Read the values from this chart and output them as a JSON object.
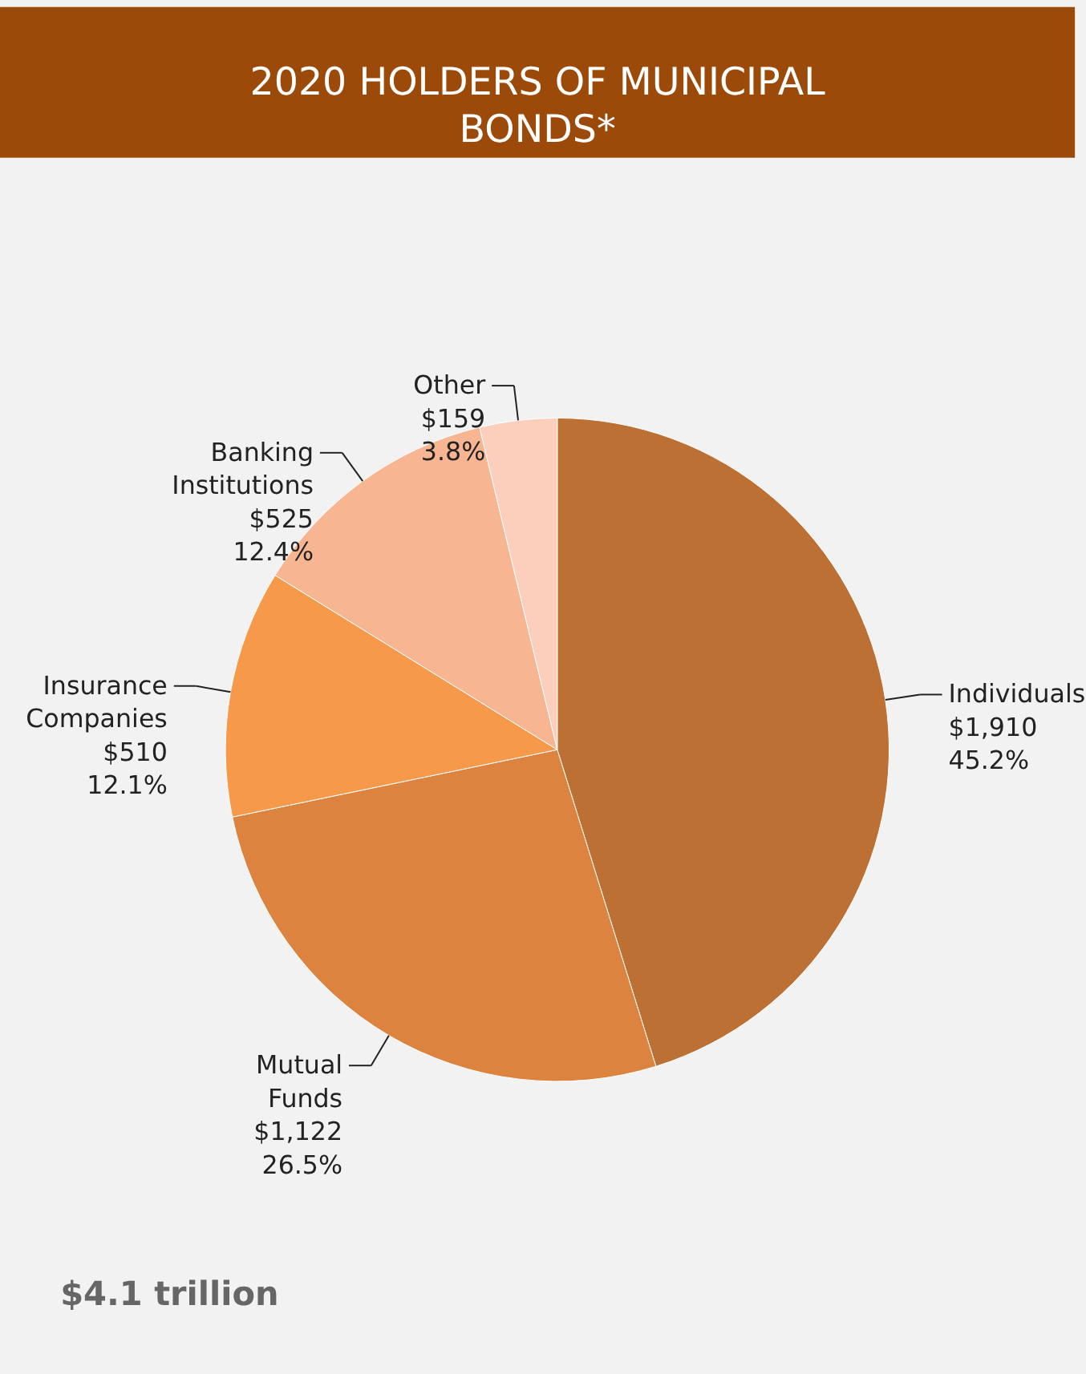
{
  "chart_data": {
    "type": "pie",
    "title": "2020 HOLDERS OF MUNICIPAL BONDS*",
    "categories": [
      "Individuals",
      "Mutual Funds",
      "Insurance Companies",
      "Banking Institutions",
      "Other"
    ],
    "values": [
      1910,
      1122,
      510,
      525,
      159
    ],
    "value_labels": [
      "$1,910 45.2%",
      "$1,122 26.5%",
      "$510 12.1%",
      "$525 12.4%",
      "$159 3.8%"
    ],
    "colors": [
      "#bc7034",
      "#dc843f",
      "#f7994b",
      "#f8b591",
      "#fbcfbc"
    ],
    "annotations": [
      "$4.1 trillion"
    ]
  }
}
